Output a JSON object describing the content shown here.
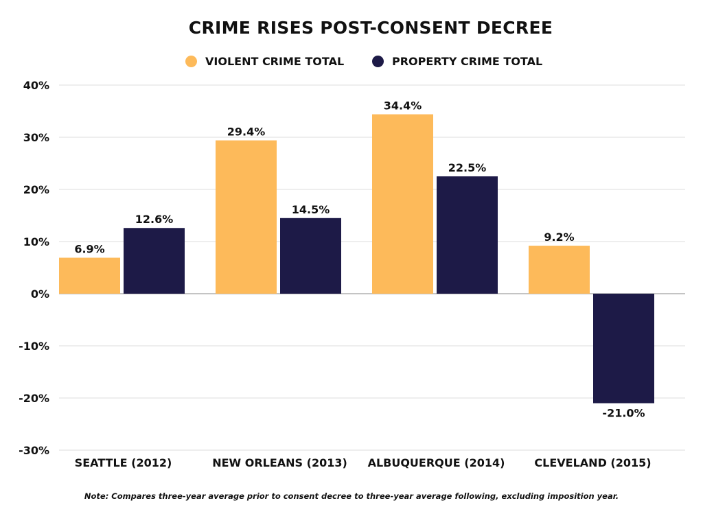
{
  "chart_data": {
    "type": "bar",
    "title": "CRIME RISES POST-CONSENT DECREE",
    "categories": [
      "SEATTLE (2012)",
      "NEW ORLEANS (2013)",
      "ALBUQUERQUE (2014)",
      "CLEVELAND (2015)"
    ],
    "series": [
      {
        "name": "VIOLENT CRIME TOTAL",
        "values": [
          6.9,
          29.4,
          34.4,
          9.2
        ],
        "labels": [
          "6.9%",
          "29.4%",
          "34.4%",
          "9.2%"
        ],
        "color": "#FDBA5A"
      },
      {
        "name": "PROPERTY CRIME TOTAL",
        "values": [
          12.6,
          14.5,
          22.5,
          -21.0
        ],
        "labels": [
          "12.6%",
          "14.5%",
          "22.5%",
          "-21.0%"
        ],
        "color": "#1D1A47"
      }
    ],
    "ylim": [
      -30,
      40
    ],
    "yticks": [
      40,
      30,
      20,
      10,
      0,
      -10,
      -20,
      -30
    ],
    "ytick_labels": [
      "40%",
      "30%",
      "20%",
      "10%",
      "0%",
      "-10%",
      "-20%",
      "-30%"
    ],
    "grid": true,
    "legend_position": "top-center",
    "note": "Note: Compares three-year average prior to consent decree to three-year average following, excluding imposition year."
  }
}
